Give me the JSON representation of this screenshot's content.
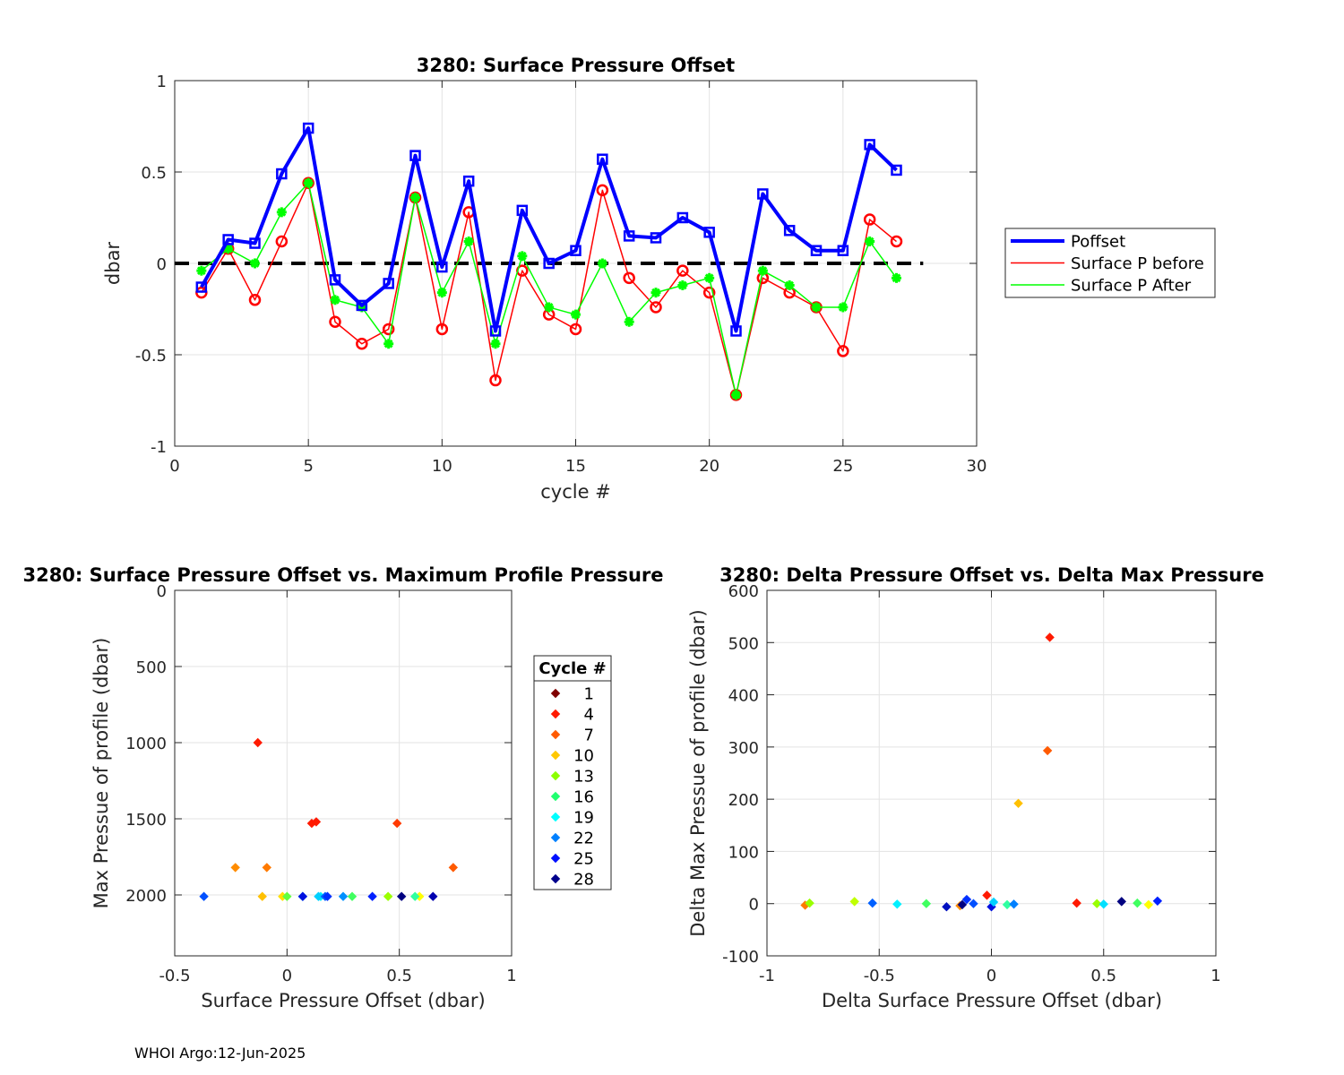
{
  "footer": "WHOI Argo:12-Jun-2025",
  "chart_data": [
    {
      "type": "line",
      "title": "3280: Surface Pressure Offset",
      "xlabel": "cycle #",
      "ylabel": "dbar",
      "xlim": [
        0,
        30
      ],
      "ylim": [
        -1,
        1
      ],
      "xticks": [
        0,
        5,
        10,
        15,
        20,
        25,
        30
      ],
      "yticks": [
        -1,
        -0.5,
        0,
        0.5,
        1
      ],
      "xtick_labels": [
        "0",
        "5",
        "10",
        "15",
        "20",
        "25",
        "30"
      ],
      "ytick_labels": [
        "-1",
        "-0.5",
        "0",
        "0.5",
        "1"
      ],
      "grid": true,
      "legend": "right",
      "zero_line": {
        "x": [
          0,
          28
        ],
        "y": 0,
        "style": "dashed",
        "color": "#000000"
      },
      "x": [
        1,
        2,
        3,
        4,
        5,
        6,
        7,
        8,
        9,
        10,
        11,
        12,
        13,
        14,
        15,
        16,
        17,
        18,
        19,
        20,
        21,
        22,
        23,
        24,
        25,
        26,
        27
      ],
      "series": [
        {
          "name": "Poffset",
          "color": "#0000ff",
          "marker": "square",
          "values": [
            -0.13,
            0.13,
            0.11,
            0.49,
            0.74,
            -0.09,
            -0.23,
            -0.11,
            0.59,
            -0.02,
            0.45,
            -0.37,
            0.29,
            0.0,
            0.07,
            0.57,
            0.15,
            0.14,
            0.25,
            0.17,
            -0.37,
            0.38,
            0.18,
            0.07,
            0.07,
            0.65,
            0.51
          ]
        },
        {
          "name": "Surface P before",
          "color": "#ff0000",
          "marker": "circle",
          "values": [
            -0.16,
            0.08,
            -0.2,
            0.12,
            0.44,
            -0.32,
            -0.44,
            -0.36,
            0.36,
            -0.36,
            0.28,
            -0.64,
            -0.04,
            -0.28,
            -0.36,
            0.4,
            -0.08,
            -0.24,
            -0.04,
            -0.16,
            -0.72,
            -0.08,
            -0.16,
            -0.24,
            -0.48,
            0.24,
            0.12
          ]
        },
        {
          "name": "Surface P After",
          "color": "#00ff00",
          "marker": "asterisk",
          "values": [
            -0.04,
            0.08,
            0.0,
            0.28,
            0.44,
            -0.2,
            -0.24,
            -0.44,
            0.36,
            -0.16,
            0.12,
            -0.44,
            0.04,
            -0.24,
            -0.28,
            0.0,
            -0.32,
            -0.16,
            -0.12,
            -0.08,
            -0.72,
            -0.04,
            -0.12,
            -0.24,
            -0.24,
            0.12,
            -0.08
          ]
        }
      ]
    },
    {
      "type": "scatter",
      "title": "3280: Surface Pressure Offset vs. Maximum Profile Pressure",
      "xlabel": "Surface Pressure Offset (dbar)",
      "ylabel": "Max Pressue of profile (dbar)",
      "xlim": [
        -0.5,
        1
      ],
      "ylim": [
        0,
        2400
      ],
      "y_reversed": true,
      "xticks": [
        -0.5,
        0,
        0.5,
        1
      ],
      "yticks": [
        0,
        500,
        1000,
        1500,
        2000
      ],
      "xtick_labels": [
        "-0.5",
        "0",
        "0.5",
        "1"
      ],
      "ytick_labels": [
        "0",
        "500",
        "1000",
        "1500",
        "2000"
      ],
      "grid": true,
      "legend": {
        "title": "Cycle #",
        "entries": [
          "1",
          "4",
          "7",
          "10",
          "13",
          "16",
          "19",
          "22",
          "25",
          "28"
        ],
        "colors": [
          "#800000",
          "#ff1a00",
          "#ff5a00",
          "#ffc800",
          "#8cff00",
          "#20ff70",
          "#00ffff",
          "#0080ff",
          "#0010ff",
          "#00008c"
        ]
      },
      "points": [
        {
          "x": -0.13,
          "y": 1000,
          "color": "#ff1a00"
        },
        {
          "x": 0.11,
          "y": 1530,
          "color": "#ff1a00"
        },
        {
          "x": 0.13,
          "y": 1520,
          "color": "#ff1a00"
        },
        {
          "x": 0.49,
          "y": 1530,
          "color": "#ff3a00"
        },
        {
          "x": 0.74,
          "y": 1820,
          "color": "#ff5a00"
        },
        {
          "x": -0.09,
          "y": 1820,
          "color": "#ff7a00"
        },
        {
          "x": -0.23,
          "y": 1820,
          "color": "#ff8c00"
        },
        {
          "x": -0.11,
          "y": 2010,
          "color": "#ffc000"
        },
        {
          "x": -0.02,
          "y": 2010,
          "color": "#ffe000"
        },
        {
          "x": 0.59,
          "y": 2010,
          "color": "#ffff00"
        },
        {
          "x": 0.0,
          "y": 2010,
          "color": "#60ff40"
        },
        {
          "x": 0.45,
          "y": 2010,
          "color": "#9aff00"
        },
        {
          "x": 0.29,
          "y": 2010,
          "color": "#40ff60"
        },
        {
          "x": 0.57,
          "y": 2010,
          "color": "#30ffa0"
        },
        {
          "x": 0.07,
          "y": 2010,
          "color": "#00e0ff"
        },
        {
          "x": 0.15,
          "y": 2010,
          "color": "#00f0ff"
        },
        {
          "x": 0.14,
          "y": 2010,
          "color": "#00d0ff"
        },
        {
          "x": 0.25,
          "y": 2010,
          "color": "#0090ff"
        },
        {
          "x": 0.17,
          "y": 2010,
          "color": "#0060ff"
        },
        {
          "x": -0.37,
          "y": 2010,
          "color": "#0050ff"
        },
        {
          "x": 0.38,
          "y": 2010,
          "color": "#0020ff"
        },
        {
          "x": 0.18,
          "y": 2010,
          "color": "#0030ff"
        },
        {
          "x": 0.07,
          "y": 2010,
          "color": "#0010e0"
        },
        {
          "x": 0.65,
          "y": 2010,
          "color": "#0000b0"
        },
        {
          "x": 0.51,
          "y": 2010,
          "color": "#000080"
        }
      ]
    },
    {
      "type": "scatter",
      "title": "3280: Delta Pressure Offset vs. Delta Max Pressure",
      "xlabel": "Delta Surface Pressure Offset (dbar)",
      "ylabel": "Delta Max Pressue of profile (dbar)",
      "xlim": [
        -1,
        1
      ],
      "ylim": [
        -100,
        600
      ],
      "xticks": [
        -1,
        -0.5,
        0,
        0.5,
        1
      ],
      "yticks": [
        -100,
        0,
        100,
        200,
        300,
        400,
        500,
        600
      ],
      "xtick_labels": [
        "-1",
        "-0.5",
        "0",
        "0.5",
        "1"
      ],
      "ytick_labels": [
        "-100",
        "0",
        "100",
        "200",
        "300",
        "400",
        "500",
        "600"
      ],
      "grid": true,
      "points": [
        {
          "x": 0.26,
          "y": 510,
          "color": "#ff1a00"
        },
        {
          "x": 0.25,
          "y": 293,
          "color": "#ff5a00"
        },
        {
          "x": 0.12,
          "y": 192,
          "color": "#ffc000"
        },
        {
          "x": -0.02,
          "y": 16,
          "color": "#ff1a00"
        },
        {
          "x": -0.83,
          "y": -3,
          "color": "#ff7a00"
        },
        {
          "x": -0.81,
          "y": 1,
          "color": "#9aff00"
        },
        {
          "x": -0.61,
          "y": 4,
          "color": "#c0ff00"
        },
        {
          "x": -0.53,
          "y": 1,
          "color": "#0060ff"
        },
        {
          "x": -0.42,
          "y": -1,
          "color": "#00f0ff"
        },
        {
          "x": -0.29,
          "y": 0,
          "color": "#40ff60"
        },
        {
          "x": -0.2,
          "y": -6,
          "color": "#0010c0"
        },
        {
          "x": -0.14,
          "y": -4,
          "color": "#ff8c00"
        },
        {
          "x": -0.13,
          "y": -2,
          "color": "#000080"
        },
        {
          "x": -0.11,
          "y": 8,
          "color": "#0030ff"
        },
        {
          "x": -0.08,
          "y": 0,
          "color": "#0050ff"
        },
        {
          "x": 0.0,
          "y": -6,
          "color": "#0010e0"
        },
        {
          "x": 0.01,
          "y": 3,
          "color": "#00d0ff"
        },
        {
          "x": 0.07,
          "y": -2,
          "color": "#30ffa0"
        },
        {
          "x": 0.1,
          "y": -1,
          "color": "#0080ff"
        },
        {
          "x": 0.38,
          "y": 1,
          "color": "#ff1a00"
        },
        {
          "x": 0.47,
          "y": 0,
          "color": "#9aff00"
        },
        {
          "x": 0.5,
          "y": -1,
          "color": "#00e0ff"
        },
        {
          "x": 0.58,
          "y": 4,
          "color": "#000080"
        },
        {
          "x": 0.65,
          "y": 1,
          "color": "#40ff60"
        },
        {
          "x": 0.7,
          "y": -2,
          "color": "#ffff00"
        },
        {
          "x": 0.74,
          "y": 5,
          "color": "#0020ff"
        }
      ]
    }
  ]
}
